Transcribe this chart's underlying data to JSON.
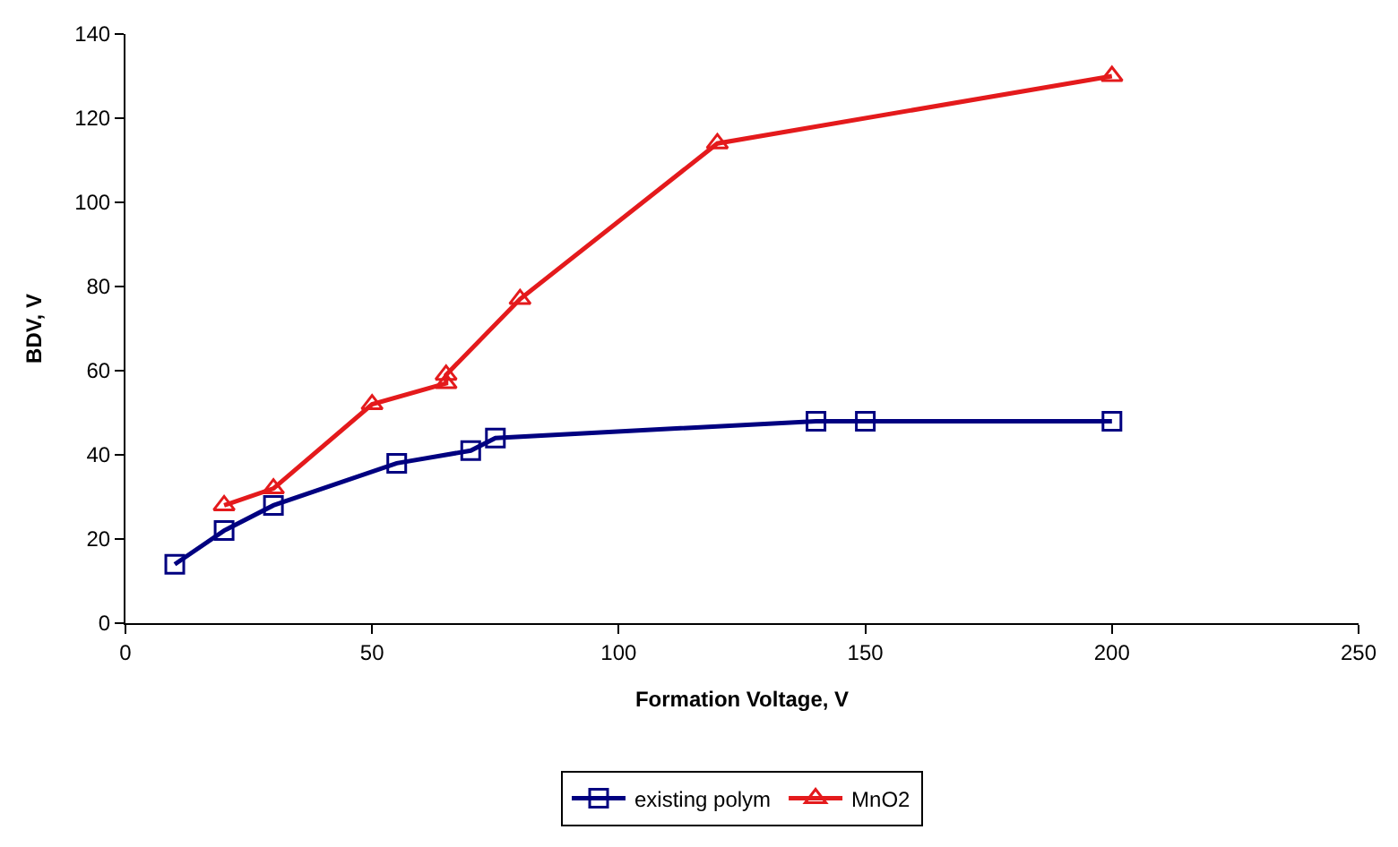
{
  "chart_data": {
    "type": "line",
    "xlabel": "Formation Voltage, V",
    "ylabel": "BDV, V",
    "xlim": [
      0,
      250
    ],
    "xticks": [
      0,
      50,
      100,
      150,
      200,
      250
    ],
    "ylim": [
      0,
      140
    ],
    "yticks": [
      0,
      20,
      40,
      60,
      80,
      100,
      120,
      140
    ],
    "legend": "bottom",
    "series": [
      {
        "name": "existing polym",
        "color": "#000080",
        "marker": "square",
        "x": [
          10,
          20,
          30,
          55,
          70,
          75,
          140,
          150,
          200
        ],
        "values": [
          14,
          22,
          28,
          38,
          41,
          44,
          48,
          48,
          48
        ]
      },
      {
        "name": "MnO2",
        "color": "#e41a1c",
        "marker": "triangle",
        "x": [
          20,
          30,
          50,
          65,
          65,
          80,
          120,
          200
        ],
        "values": [
          28,
          32,
          52,
          57,
          59,
          77,
          114,
          130
        ]
      }
    ]
  }
}
